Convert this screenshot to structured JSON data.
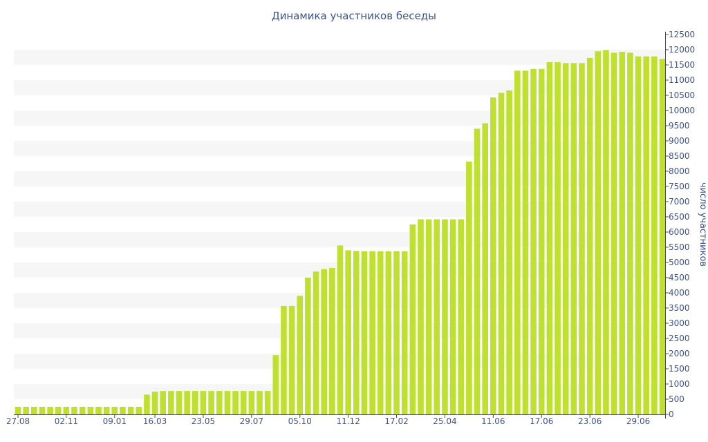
{
  "chart_data": {
    "type": "bar",
    "title": "Динамика участников беседы",
    "xlabel": "",
    "ylabel": "число участников",
    "ylim": [
      0,
      12500
    ],
    "ytick_step": 500,
    "y_axis_position": "right",
    "grid": "horizontal alternating bands",
    "x_tick_labels": [
      "27.08",
      "02.11",
      "09.01",
      "16.03",
      "23.05",
      "29.07",
      "05.10",
      "11.12",
      "17.02",
      "25.04",
      "11.06",
      "17.06",
      "23.06",
      "29.06"
    ],
    "x_tick_label_index": [
      0,
      6,
      12,
      17,
      23,
      29,
      35,
      41,
      47,
      53,
      59,
      65,
      71,
      77
    ],
    "values": [
      250,
      250,
      250,
      250,
      250,
      250,
      250,
      250,
      250,
      250,
      250,
      250,
      250,
      250,
      250,
      250,
      650,
      750,
      770,
      770,
      770,
      770,
      770,
      770,
      770,
      770,
      770,
      770,
      770,
      770,
      770,
      770,
      1950,
      3570,
      3570,
      3900,
      4500,
      4700,
      4780,
      4820,
      5560,
      5400,
      5380,
      5370,
      5370,
      5370,
      5370,
      5370,
      5370,
      6250,
      6420,
      6420,
      6420,
      6420,
      6420,
      6420,
      8320,
      9400,
      9580,
      10430,
      10580,
      10660,
      11310,
      11310,
      11370,
      11370,
      11590,
      11590,
      11560,
      11560,
      11560,
      11730,
      11950,
      11990,
      11900,
      11930,
      11900,
      11780,
      11780,
      11780,
      11700
    ],
    "colors": {
      "bar": "#bfe030",
      "band": "#f6f6f6",
      "text": "#3e5488",
      "axis": "#4a4a4a"
    }
  }
}
